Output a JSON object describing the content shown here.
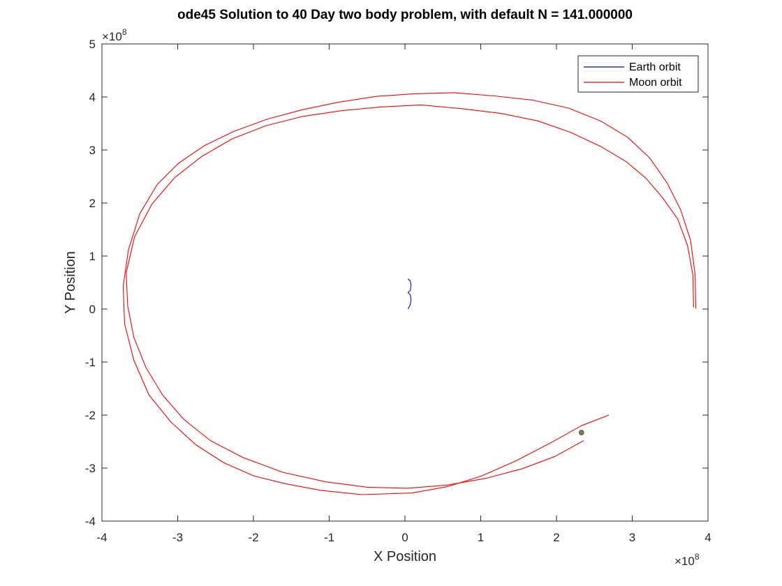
{
  "chart_data": {
    "type": "line",
    "title": "ode45 Solution to 40 Day two body problem, with default N = 141.000000",
    "xlabel": "X Position",
    "ylabel": "Y Position",
    "xlim": [
      -4,
      4
    ],
    "ylim": [
      -4,
      5
    ],
    "x_exponent_label": "×10",
    "x_exponent_power": "8",
    "y_exponent_label": "×10",
    "y_exponent_power": "8",
    "x_ticks": [
      "-4",
      "-3",
      "-2",
      "-1",
      "0",
      "1",
      "2",
      "3",
      "4"
    ],
    "y_ticks": [
      "-4",
      "-3",
      "-2",
      "-1",
      "0",
      "1",
      "2",
      "3",
      "4",
      "5"
    ],
    "grid": false,
    "legend_position": "top-right",
    "series": [
      {
        "name": "Earth orbit",
        "color": "#0000ff",
        "x": [
          0.04,
          0.07,
          0.08,
          0.07,
          0.04,
          0.07,
          0.08,
          0.07,
          0.04
        ],
        "y": [
          0.0,
          0.08,
          0.18,
          0.27,
          0.31,
          0.35,
          0.45,
          0.53,
          0.57
        ]
      },
      {
        "name": "Moon orbit",
        "color": "#ff0000",
        "x": [
          3.84,
          3.83,
          3.77,
          3.64,
          3.46,
          3.23,
          2.94,
          2.58,
          2.16,
          1.69,
          1.18,
          0.65,
          0.12,
          -0.38,
          -0.88,
          -1.35,
          -1.82,
          -2.26,
          -2.65,
          -2.99,
          -3.27,
          -3.5,
          -3.65,
          -3.72,
          -3.7,
          -3.58,
          -3.38,
          -3.09,
          -2.76,
          -2.39,
          -1.99,
          -1.56,
          -1.11,
          -0.57,
          0.09,
          0.56,
          1.01,
          1.47,
          1.94,
          2.33,
          2.69
        ],
        "y": [
          0.01,
          0.65,
          1.3,
          1.87,
          2.38,
          2.85,
          3.24,
          3.55,
          3.79,
          3.94,
          4.02,
          4.08,
          4.06,
          4.01,
          3.9,
          3.76,
          3.58,
          3.35,
          3.08,
          2.75,
          2.35,
          1.8,
          1.12,
          0.43,
          -0.28,
          -0.96,
          -1.62,
          -2.13,
          -2.56,
          -2.9,
          -3.15,
          -3.3,
          -3.42,
          -3.5,
          -3.47,
          -3.35,
          -3.15,
          -2.86,
          -2.51,
          -2.2,
          -2.0
        ]
      },
      {
        "name": "",
        "color": "#ff0000",
        "x": [
          3.81,
          3.8,
          3.73,
          3.6,
          3.4,
          3.18,
          2.92,
          2.58,
          2.19,
          1.75,
          1.27,
          0.74,
          0.21,
          -0.33,
          -0.85,
          -1.36,
          -1.83,
          -2.28,
          -2.68,
          -3.04,
          -3.34,
          -3.57,
          -3.68,
          -3.66,
          -3.58,
          -3.42,
          -3.2,
          -2.92,
          -2.57,
          -2.14,
          -1.61,
          -1.04,
          -0.5,
          0.03,
          0.56,
          1.08,
          1.55,
          1.98,
          2.36
        ],
        "y": [
          0.03,
          0.65,
          1.2,
          1.7,
          2.1,
          2.47,
          2.78,
          3.07,
          3.33,
          3.55,
          3.69,
          3.78,
          3.85,
          3.81,
          3.74,
          3.63,
          3.46,
          3.21,
          2.88,
          2.48,
          1.98,
          1.36,
          0.68,
          0.06,
          -0.53,
          -1.1,
          -1.62,
          -2.08,
          -2.48,
          -2.8,
          -3.08,
          -3.26,
          -3.36,
          -3.38,
          -3.32,
          -3.19,
          -3.01,
          -2.78,
          -2.48
        ]
      }
    ],
    "marker": {
      "x": 2.33,
      "y": -2.33,
      "color": "#7a7a5a"
    }
  }
}
